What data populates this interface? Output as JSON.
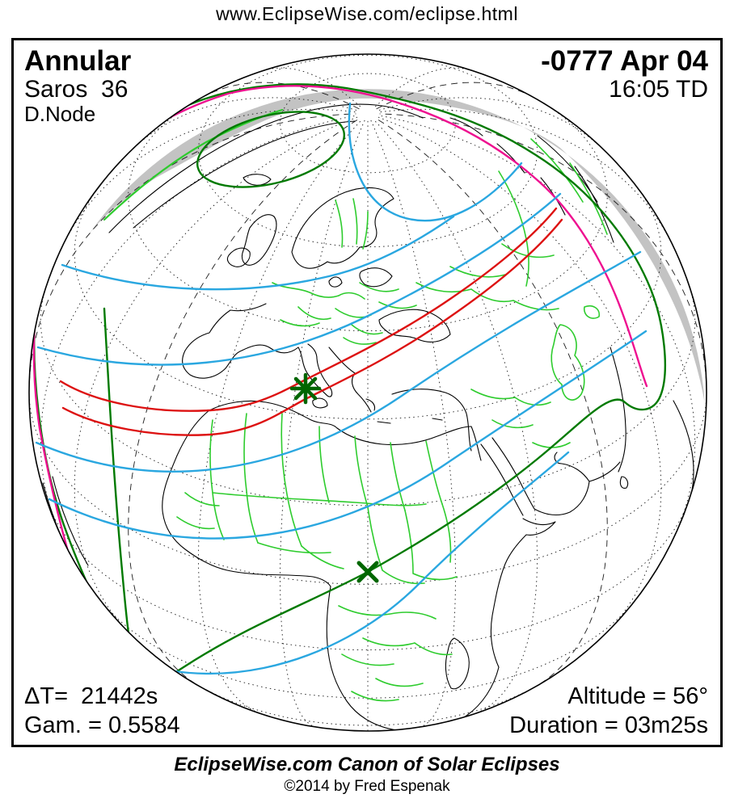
{
  "header": {
    "url": "www.EclipseWise.com/eclipse.html"
  },
  "eclipse_panel": {
    "type": "Annular",
    "saros": "Saros  36",
    "node": "D.Node",
    "date": "-0777 Apr 04",
    "time": "16:05 TD"
  },
  "stats": {
    "delta_t": "ΔT=  21442s",
    "gamma": "Gam. = 0.5584",
    "altitude": "Altitude = 56°",
    "duration": "Duration = 03m25s"
  },
  "footer": {
    "title": "EclipseWise.com Canon of Solar Eclipses",
    "copyright": "©2014 by Fred Espenak"
  },
  "map": {
    "projection": "orthographic globe centered on Mediterranean (~34N, 20E)",
    "colors": {
      "coast": "#000000",
      "border": "#2ecc2e",
      "shading": "#c3c3c3",
      "outline": "#007a00",
      "riseset": "#ee1090",
      "max": "#2aa7e0",
      "path": "#dd1111",
      "marker": "#006600",
      "graticule": "#1a1a1a"
    },
    "markers": [
      {
        "name": "greatest-eclipse-marker",
        "symbol": "asterisk"
      },
      {
        "name": "sub-solar-point-marker",
        "symbol": "x"
      }
    ]
  }
}
